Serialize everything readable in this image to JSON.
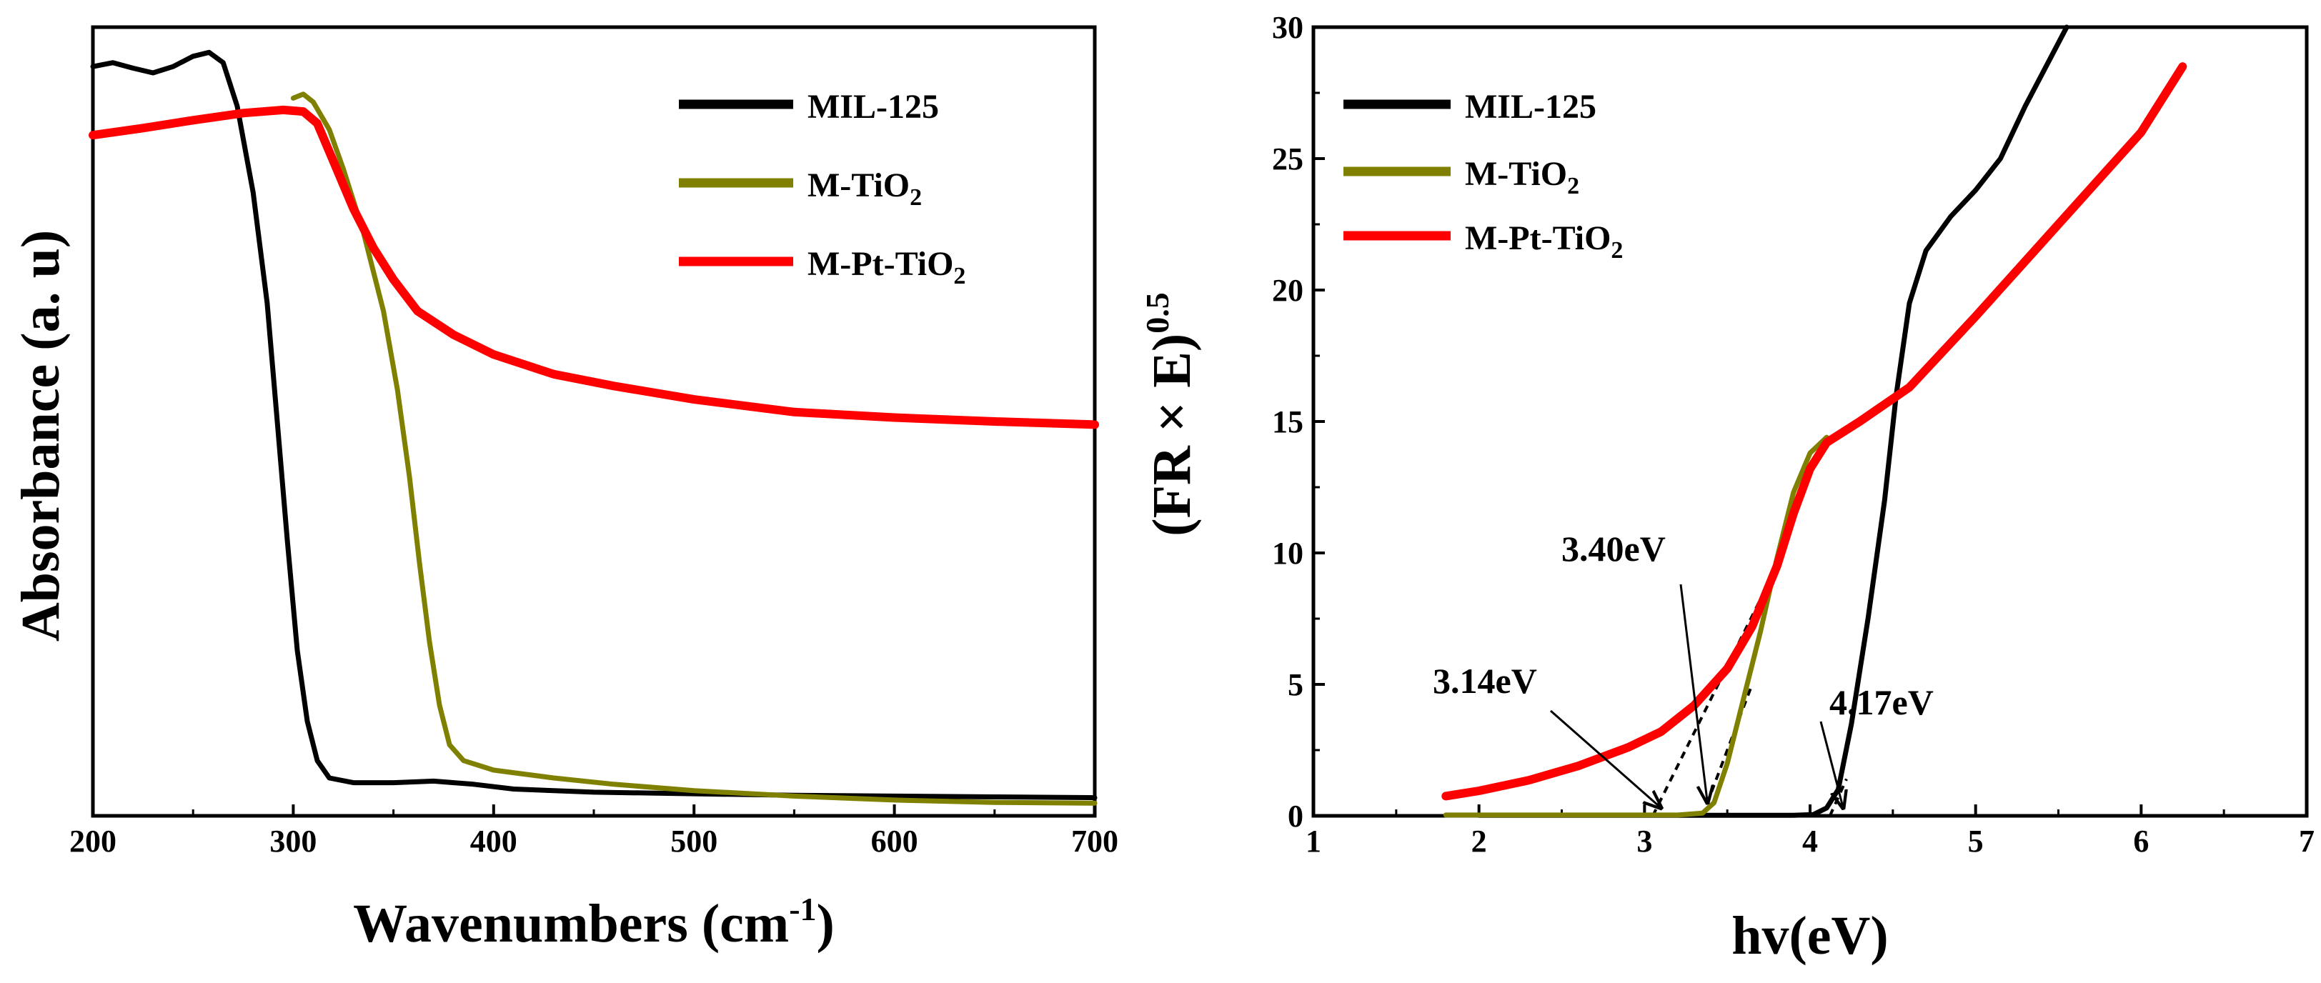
{
  "chart_data": [
    {
      "type": "line",
      "xlabel_main": "Wavenumbers (cm",
      "xlabel_sup": "-1",
      "xlabel_close": ")",
      "ylabel": "Absorbance (a. u)",
      "xlim": [
        200,
        700
      ],
      "ylim": [
        0,
        1.0
      ],
      "xticks": [
        200,
        300,
        400,
        500,
        600,
        700
      ],
      "yticks_shown": false,
      "legend_position": "top-right",
      "series": [
        {
          "name": "MIL-125",
          "legend_main": "MIL-125",
          "legend_sub": "",
          "color": "#000000",
          "points": [
            [
              200,
              0.95
            ],
            [
              210,
              0.955
            ],
            [
              220,
              0.948
            ],
            [
              230,
              0.942
            ],
            [
              240,
              0.95
            ],
            [
              250,
              0.963
            ],
            [
              258,
              0.968
            ],
            [
              265,
              0.955
            ],
            [
              272,
              0.9
            ],
            [
              280,
              0.79
            ],
            [
              287,
              0.65
            ],
            [
              292,
              0.5
            ],
            [
              297,
              0.35
            ],
            [
              302,
              0.21
            ],
            [
              307,
              0.12
            ],
            [
              312,
              0.07
            ],
            [
              318,
              0.048
            ],
            [
              330,
              0.042
            ],
            [
              350,
              0.042
            ],
            [
              370,
              0.044
            ],
            [
              390,
              0.04
            ],
            [
              410,
              0.034
            ],
            [
              450,
              0.03
            ],
            [
              500,
              0.028
            ],
            [
              550,
              0.026
            ],
            [
              600,
              0.025
            ],
            [
              650,
              0.024
            ],
            [
              700,
              0.023
            ]
          ]
        },
        {
          "name": "M-TiO2",
          "legend_main": "M-TiO",
          "legend_sub": "2",
          "color": "#808000",
          "points": [
            [
              300,
              0.91
            ],
            [
              305,
              0.915
            ],
            [
              310,
              0.905
            ],
            [
              318,
              0.87
            ],
            [
              325,
              0.82
            ],
            [
              335,
              0.74
            ],
            [
              345,
              0.64
            ],
            [
              352,
              0.54
            ],
            [
              358,
              0.43
            ],
            [
              363,
              0.32
            ],
            [
              368,
              0.22
            ],
            [
              373,
              0.14
            ],
            [
              378,
              0.09
            ],
            [
              385,
              0.07
            ],
            [
              400,
              0.058
            ],
            [
              430,
              0.048
            ],
            [
              460,
              0.04
            ],
            [
              500,
              0.032
            ],
            [
              550,
              0.025
            ],
            [
              600,
              0.02
            ],
            [
              650,
              0.017
            ],
            [
              700,
              0.016
            ]
          ]
        },
        {
          "name": "M-Pt-TiO2",
          "legend_main": "M-Pt-TiO",
          "legend_sub": "2",
          "color": "#ff0000",
          "points": [
            [
              200,
              0.863
            ],
            [
              225,
              0.872
            ],
            [
              250,
              0.882
            ],
            [
              275,
              0.891
            ],
            [
              295,
              0.895
            ],
            [
              305,
              0.893
            ],
            [
              312,
              0.878
            ],
            [
              320,
              0.83
            ],
            [
              330,
              0.77
            ],
            [
              340,
              0.72
            ],
            [
              350,
              0.68
            ],
            [
              362,
              0.64
            ],
            [
              380,
              0.61
            ],
            [
              400,
              0.585
            ],
            [
              430,
              0.56
            ],
            [
              460,
              0.545
            ],
            [
              500,
              0.528
            ],
            [
              550,
              0.512
            ],
            [
              600,
              0.505
            ],
            [
              650,
              0.5
            ],
            [
              700,
              0.496
            ]
          ]
        }
      ]
    },
    {
      "type": "line",
      "xlabel": "hv(eV)",
      "ylabel_main": "(FR × E)",
      "ylabel_sup": "0.5",
      "xlim": [
        1,
        7
      ],
      "ylim": [
        0,
        30
      ],
      "xticks": [
        1,
        2,
        3,
        4,
        5,
        6,
        7
      ],
      "yticks": [
        0,
        5,
        10,
        15,
        20,
        25,
        30
      ],
      "legend_position": "top-left",
      "series": [
        {
          "name": "MIL-125",
          "legend_main": "MIL-125",
          "legend_sub": "",
          "color": "#000000",
          "points": [
            [
              2.0,
              0.02
            ],
            [
              3.0,
              0.02
            ],
            [
              3.9,
              0.02
            ],
            [
              4.02,
              0.05
            ],
            [
              4.1,
              0.3
            ],
            [
              4.17,
              1.0
            ],
            [
              4.25,
              3.5
            ],
            [
              4.35,
              7.5
            ],
            [
              4.45,
              12.0
            ],
            [
              4.52,
              16.0
            ],
            [
              4.6,
              19.5
            ],
            [
              4.7,
              21.5
            ],
            [
              4.85,
              22.8
            ],
            [
              5.0,
              23.8
            ],
            [
              5.15,
              25.0
            ],
            [
              5.3,
              27.0
            ],
            [
              5.45,
              28.8
            ],
            [
              5.55,
              30.0
            ]
          ]
        },
        {
          "name": "M-TiO2",
          "legend_main": "M-TiO",
          "legend_sub": "2",
          "color": "#808000",
          "points": [
            [
              1.8,
              0.03
            ],
            [
              3.2,
              0.03
            ],
            [
              3.35,
              0.1
            ],
            [
              3.42,
              0.5
            ],
            [
              3.5,
              2.0
            ],
            [
              3.6,
              4.5
            ],
            [
              3.7,
              7.0
            ],
            [
              3.8,
              9.8
            ],
            [
              3.9,
              12.3
            ],
            [
              4.0,
              13.8
            ],
            [
              4.1,
              14.4
            ]
          ]
        },
        {
          "name": "M-Pt-TiO2",
          "legend_main": "M-Pt-TiO",
          "legend_sub": "2",
          "color": "#ff0000",
          "points": [
            [
              1.8,
              0.75
            ],
            [
              2.0,
              0.95
            ],
            [
              2.3,
              1.35
            ],
            [
              2.6,
              1.9
            ],
            [
              2.9,
              2.6
            ],
            [
              3.1,
              3.2
            ],
            [
              3.3,
              4.2
            ],
            [
              3.5,
              5.6
            ],
            [
              3.65,
              7.2
            ],
            [
              3.8,
              9.5
            ],
            [
              3.9,
              11.5
            ],
            [
              4.0,
              13.2
            ],
            [
              4.1,
              14.2
            ],
            [
              4.3,
              15.0
            ],
            [
              4.6,
              16.3
            ],
            [
              5.0,
              19.0
            ],
            [
              5.5,
              22.5
            ],
            [
              6.0,
              26.0
            ],
            [
              6.25,
              28.5
            ]
          ]
        }
      ],
      "tangent_lines": [
        {
          "points": [
            [
              3.05,
              0
            ],
            [
              3.8,
              9.5
            ]
          ],
          "color": "#000000"
        },
        {
          "points": [
            [
              3.35,
              0
            ],
            [
              3.65,
              5.0
            ]
          ],
          "color": "#000000"
        },
        {
          "points": [
            [
              4.12,
              0
            ],
            [
              4.22,
              1.4
            ]
          ],
          "color": "#000000"
        }
      ],
      "annotations": [
        {
          "label": "3.40eV",
          "arrow_to": [
            3.38,
            0.5
          ]
        },
        {
          "label": "3.14eV",
          "arrow_to": [
            3.1,
            0.3
          ]
        },
        {
          "label": "4.17eV",
          "arrow_to": [
            4.2,
            0.3
          ]
        }
      ]
    }
  ]
}
